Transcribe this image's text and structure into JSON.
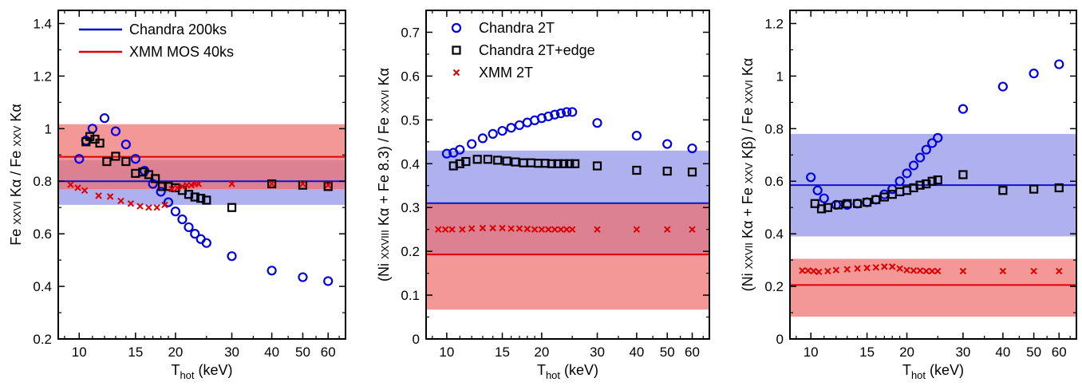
{
  "chart_data": [
    {
      "type": "scatter",
      "xscale": "log",
      "xlim": [
        8.6,
        68
      ],
      "ylim": [
        0.2,
        1.45
      ],
      "xlabel_main": "T",
      "xlabel_sub": "hot",
      "xlabel_unit": " (keV)",
      "ylabel": "Fe xxvi  Kα / Fe xxv  Kα",
      "x_ticks": [
        10,
        15,
        20,
        30,
        40,
        50,
        60
      ],
      "y_ticks": [
        0.2,
        0.4,
        0.6,
        0.8,
        1,
        1.2,
        1.4
      ],
      "y_tick_labels": [
        "0.2",
        "0.4",
        "0.6",
        "0.8",
        "1",
        "1.2",
        "1.4"
      ],
      "legend": [
        {
          "label": "Chandra 200ks",
          "kind": "line",
          "color": "#0000cc"
        },
        {
          "label": "XMM MOS 40ks",
          "kind": "line",
          "color": "#dd0000"
        }
      ],
      "bands": [
        {
          "name": "Chandra 200ks",
          "center": 0.8,
          "low": 0.71,
          "high": 0.88,
          "line_color": "#1010cc",
          "fill": "#8f93e6"
        },
        {
          "name": "XMM MOS 40ks",
          "center": 0.893,
          "low": 0.77,
          "high": 1.017,
          "line_color": "#dd0000",
          "fill": "#ee6f6f"
        }
      ],
      "series": [
        {
          "name": "Chandra 2T",
          "marker": "circle",
          "color": "#0000dd",
          "x": [
            10,
            10.5,
            11,
            12,
            13,
            14,
            15,
            16,
            17,
            18,
            19,
            20,
            21,
            22,
            23,
            24,
            25,
            30,
            40,
            50,
            60
          ],
          "y": [
            0.885,
            0.955,
            1.0,
            1.04,
            0.99,
            0.94,
            0.885,
            0.84,
            0.79,
            0.76,
            0.72,
            0.685,
            0.655,
            0.625,
            0.6,
            0.58,
            0.565,
            0.515,
            0.46,
            0.435,
            0.42
          ]
        },
        {
          "name": "Chandra 2T+edge",
          "marker": "square",
          "color": "#000000",
          "x": [
            10.5,
            10.8,
            11.2,
            11.6,
            12.2,
            13,
            14,
            15,
            15.8,
            16.5,
            17.3,
            18.2,
            19,
            20,
            21,
            22,
            23,
            24,
            25,
            30,
            40,
            50,
            60
          ],
          "y": [
            0.95,
            0.97,
            0.96,
            0.945,
            0.875,
            0.895,
            0.875,
            0.83,
            0.835,
            0.825,
            0.81,
            0.78,
            0.78,
            0.775,
            0.765,
            0.75,
            0.74,
            0.735,
            0.728,
            0.7,
            0.79,
            0.785,
            0.78
          ]
        },
        {
          "name": "XMM 2T",
          "marker": "x",
          "color": "#dd0000",
          "x": [
            9.4,
            9.9,
            10.4,
            11.5,
            12.5,
            13.5,
            14.5,
            15.5,
            16.5,
            17.5,
            18.5,
            19.5,
            20.3,
            21,
            21.7,
            22.4,
            23,
            23.6,
            30,
            40,
            50,
            60
          ],
          "y": [
            0.787,
            0.775,
            0.765,
            0.745,
            0.742,
            0.725,
            0.715,
            0.705,
            0.7,
            0.7,
            0.71,
            0.77,
            0.775,
            0.78,
            0.785,
            0.785,
            0.79,
            0.79,
            0.79,
            0.79,
            0.79,
            0.785
          ]
        }
      ]
    },
    {
      "type": "scatter",
      "xscale": "log",
      "xlim": [
        8.6,
        68
      ],
      "ylim": [
        0,
        0.75
      ],
      "xlabel_main": "T",
      "xlabel_sub": "hot",
      "xlabel_unit": " (keV)",
      "ylabel": "(Ni xxviii  Kα + Fe 8.3) / Fe xxvi  Kα",
      "x_ticks": [
        10,
        15,
        20,
        30,
        40,
        50,
        60
      ],
      "y_ticks": [
        0,
        0.1,
        0.2,
        0.3,
        0.4,
        0.5,
        0.6,
        0.7
      ],
      "y_tick_labels": [
        "0",
        "0.1",
        "0.2",
        "0.3",
        "0.4",
        "0.5",
        "0.6",
        "0.7"
      ],
      "legend": [
        {
          "label": "Chandra 2T",
          "kind": "circle",
          "color": "#0000dd"
        },
        {
          "label": "Chandra 2T+edge",
          "kind": "square",
          "color": "#000000"
        },
        {
          "label": "XMM 2T",
          "kind": "x",
          "color": "#dd0000"
        }
      ],
      "bands": [
        {
          "name": "Chandra",
          "center": 0.31,
          "low": 0.19,
          "high": 0.43,
          "line_color": "#1010cc",
          "fill": "#8f93e6"
        },
        {
          "name": "XMM",
          "center": 0.193,
          "low": 0.067,
          "high": 0.31,
          "line_color": "#dd0000",
          "fill": "#ee6f6f"
        }
      ],
      "series": [
        {
          "name": "Chandra 2T",
          "marker": "circle",
          "color": "#0000dd",
          "x": [
            10,
            10.5,
            11,
            12,
            13,
            14,
            15,
            16,
            17,
            18,
            19,
            20,
            21,
            22,
            23,
            24,
            25,
            30,
            40,
            50,
            60
          ],
          "y": [
            0.423,
            0.425,
            0.432,
            0.445,
            0.458,
            0.468,
            0.475,
            0.482,
            0.488,
            0.494,
            0.499,
            0.504,
            0.508,
            0.512,
            0.515,
            0.518,
            0.518,
            0.493,
            0.464,
            0.445,
            0.435
          ]
        },
        {
          "name": "Chandra 2T+edge",
          "marker": "square",
          "color": "#000000",
          "x": [
            10.5,
            11,
            11.5,
            12.5,
            13.5,
            14.5,
            15.5,
            16.5,
            17.5,
            18.5,
            19.5,
            20.5,
            21.5,
            22.5,
            23.5,
            24.5,
            25.5,
            30,
            40,
            50,
            60
          ],
          "y": [
            0.395,
            0.4,
            0.405,
            0.41,
            0.41,
            0.408,
            0.406,
            0.404,
            0.402,
            0.402,
            0.401,
            0.401,
            0.4,
            0.4,
            0.4,
            0.4,
            0.4,
            0.395,
            0.385,
            0.383,
            0.381
          ]
        },
        {
          "name": "XMM 2T",
          "marker": "x",
          "color": "#dd0000",
          "x": [
            9.4,
            9.9,
            10.4,
            11.2,
            12,
            13,
            14,
            15,
            16,
            17,
            18,
            19,
            20,
            21,
            22,
            23,
            24,
            25,
            30,
            40,
            50,
            60
          ],
          "y": [
            0.25,
            0.25,
            0.25,
            0.25,
            0.252,
            0.253,
            0.253,
            0.253,
            0.252,
            0.252,
            0.251,
            0.25,
            0.25,
            0.25,
            0.25,
            0.25,
            0.25,
            0.25,
            0.25,
            0.25,
            0.25,
            0.25
          ]
        }
      ]
    },
    {
      "type": "scatter",
      "xscale": "log",
      "xlim": [
        8.6,
        68
      ],
      "ylim": [
        0,
        1.25
      ],
      "xlabel_main": "T",
      "xlabel_sub": "hot",
      "xlabel_unit": " (keV)",
      "ylabel": "(Ni xxvii  Kα + Fe xxv  Kβ) / Fe xxvi  Kα",
      "x_ticks": [
        10,
        15,
        20,
        30,
        40,
        50,
        60
      ],
      "y_ticks": [
        0,
        0.2,
        0.4,
        0.6,
        0.8,
        1,
        1.2
      ],
      "y_tick_labels": [
        "0",
        "0.2",
        "0.4",
        "0.6",
        "0.8",
        "1",
        "1.2"
      ],
      "legend": [],
      "bands": [
        {
          "name": "Chandra",
          "center": 0.585,
          "low": 0.39,
          "high": 0.78,
          "line_color": "#1010cc",
          "fill": "#8f93e6"
        },
        {
          "name": "XMM",
          "center": 0.205,
          "low": 0.085,
          "high": 0.305,
          "line_color": "#dd0000",
          "fill": "#ee6f6f"
        }
      ],
      "series": [
        {
          "name": "Chandra 2T",
          "marker": "circle",
          "color": "#0000dd",
          "x": [
            10,
            10.5,
            11,
            12,
            13,
            14,
            15,
            16,
            17,
            18,
            19,
            20,
            21,
            22,
            23,
            24,
            25,
            30,
            40,
            50,
            60
          ],
          "y": [
            0.615,
            0.565,
            0.535,
            0.51,
            0.51,
            0.515,
            0.52,
            0.53,
            0.55,
            0.57,
            0.6,
            0.63,
            0.66,
            0.69,
            0.72,
            0.745,
            0.765,
            0.875,
            0.96,
            1.01,
            1.045
          ]
        },
        {
          "name": "Chandra 2T+edge",
          "marker": "square",
          "color": "#000000",
          "x": [
            10.3,
            10.8,
            11.3,
            12.2,
            13,
            14,
            15,
            16,
            17,
            18,
            19,
            20,
            21,
            22,
            23,
            24,
            25,
            30,
            40,
            50,
            60
          ],
          "y": [
            0.515,
            0.495,
            0.5,
            0.51,
            0.515,
            0.515,
            0.52,
            0.53,
            0.54,
            0.55,
            0.56,
            0.565,
            0.575,
            0.585,
            0.59,
            0.6,
            0.605,
            0.625,
            0.565,
            0.57,
            0.575
          ]
        },
        {
          "name": "XMM 2T",
          "marker": "x",
          "color": "#dd0000",
          "x": [
            9.4,
            9.8,
            10.2,
            10.6,
            11.3,
            12,
            13,
            14,
            15,
            16,
            17,
            18,
            19,
            20,
            21,
            22,
            23,
            24,
            25,
            30,
            40,
            50,
            60
          ],
          "y": [
            0.26,
            0.26,
            0.258,
            0.255,
            0.258,
            0.262,
            0.265,
            0.268,
            0.27,
            0.272,
            0.275,
            0.275,
            0.268,
            0.262,
            0.26,
            0.26,
            0.258,
            0.258,
            0.258,
            0.258,
            0.258,
            0.258,
            0.258
          ]
        }
      ]
    }
  ]
}
